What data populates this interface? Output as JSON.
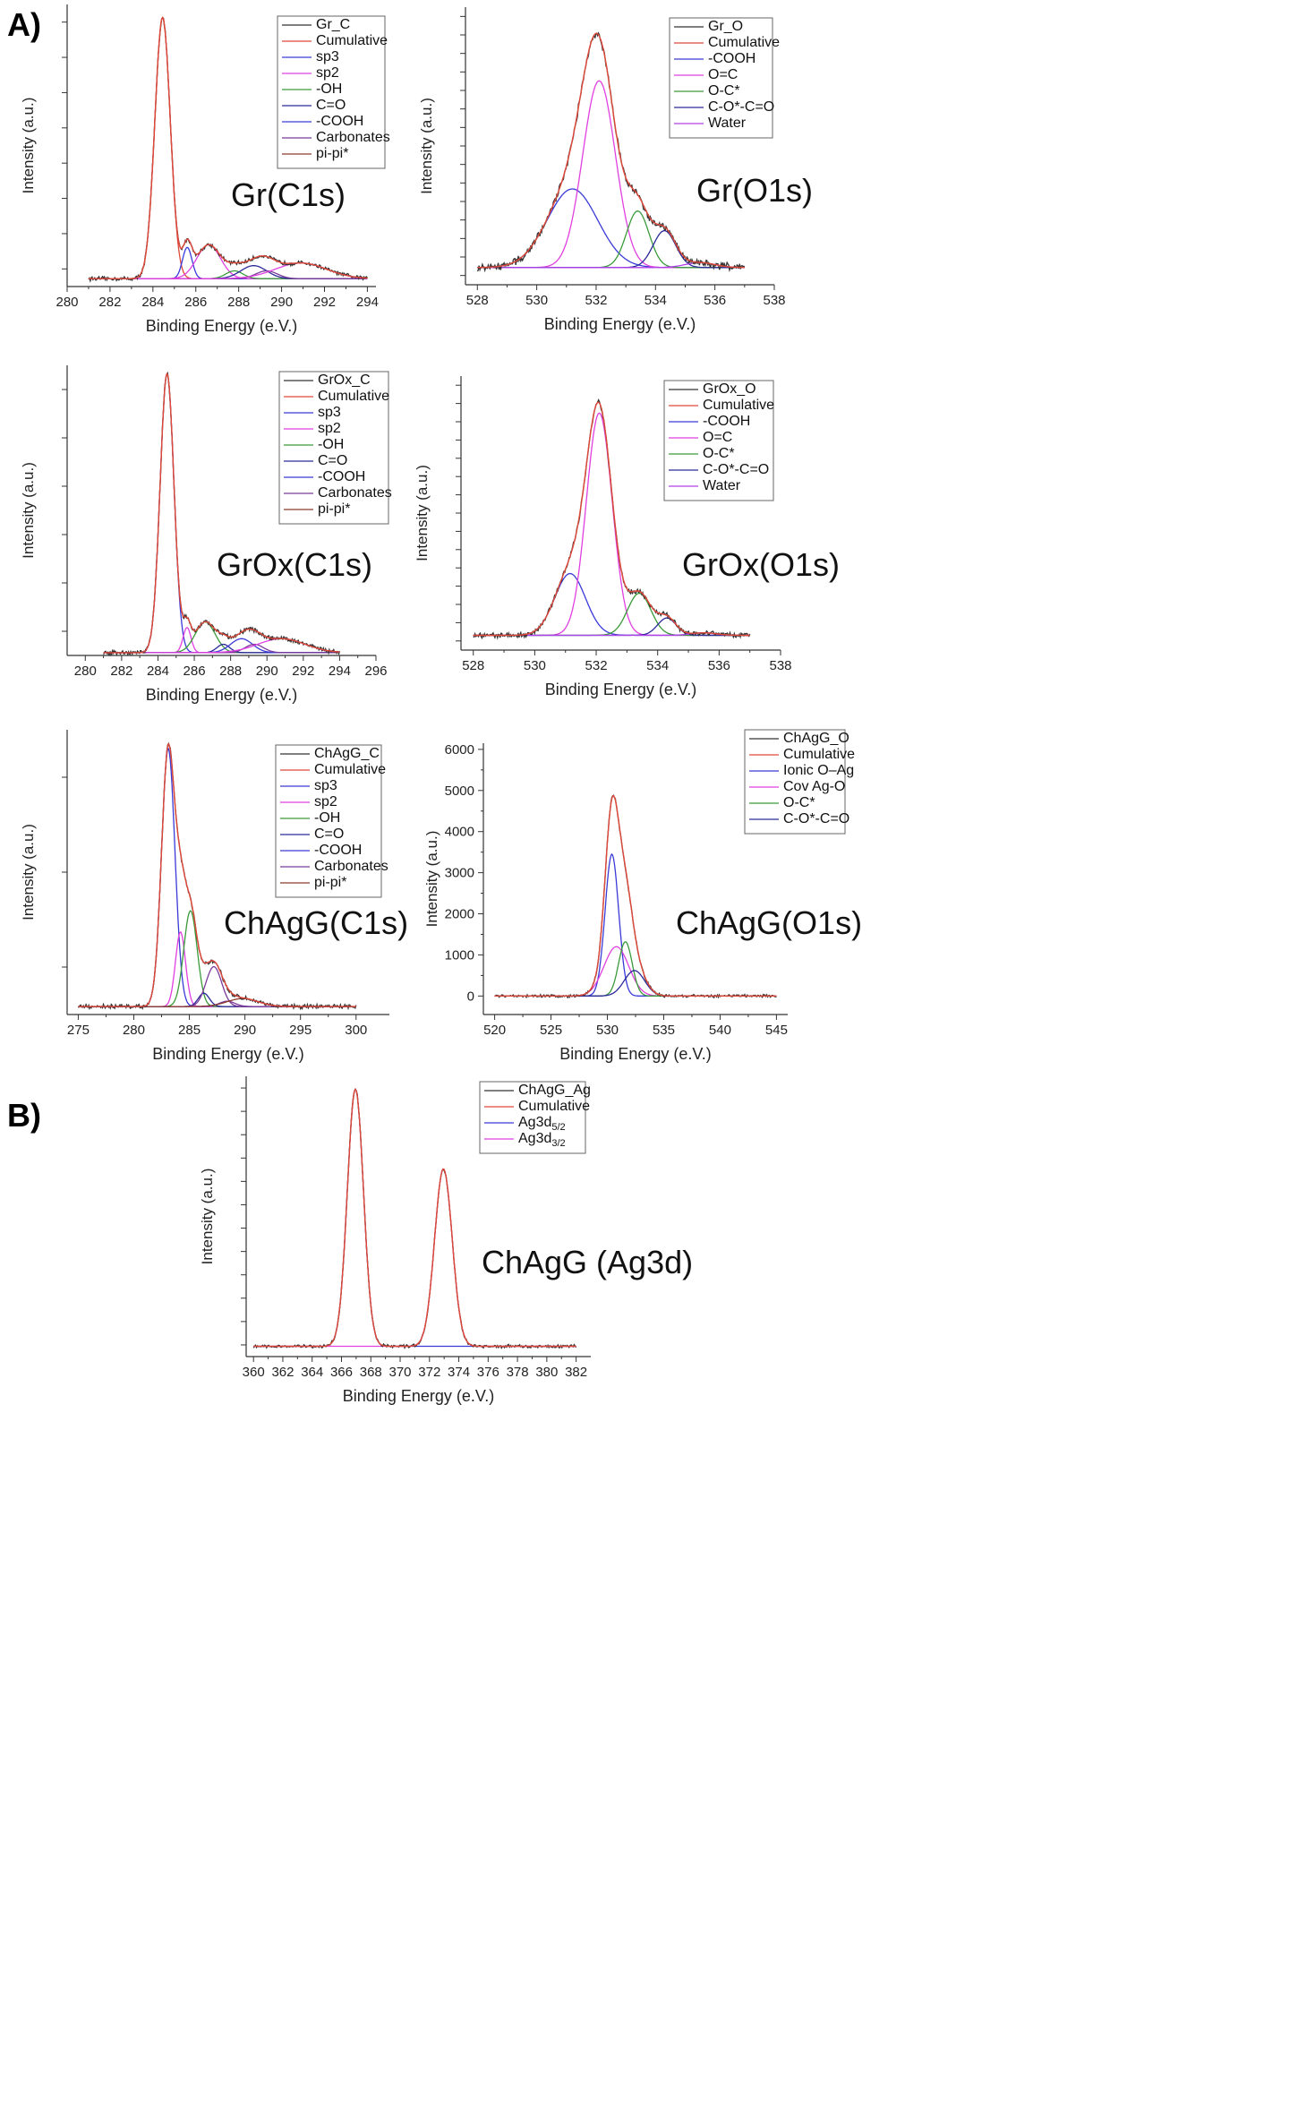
{
  "panel_labels": [
    "A)",
    "B)"
  ],
  "colors": {
    "measured": "#333333",
    "cumulative": "#e0483a",
    "blue": "#3a3ad8",
    "magenta": "#e040e0",
    "green": "#3a9a3a",
    "navy": "#2a2a9a",
    "purple": "#7a3a9a",
    "brown": "#8a3a2a",
    "violet": "#b040e8"
  },
  "chart_data": [
    {
      "type": "line",
      "id": "gr-c1s",
      "title": "Gr(C1s)",
      "xlabel": "Binding Energy (e.V.)",
      "ylabel": "Intensity (a.u.)",
      "xlim": [
        280,
        294.4
      ],
      "ylim": [
        -0.03,
        1.05
      ],
      "xticks": [
        280,
        282,
        284,
        286,
        288,
        290,
        292,
        294
      ],
      "ytick_count": 8,
      "data_range": [
        281,
        294
      ],
      "tick_labels": true,
      "legend": [
        "Gr_C",
        "Cumulative",
        "sp3",
        "sp2",
        "-OH",
        "C=O",
        "-COOH",
        "Carbonates",
        "pi-pi*"
      ],
      "legend_colors": [
        "measured",
        "cumulative",
        "blue",
        "magenta",
        "green",
        "navy",
        "blue",
        "purple",
        "brown"
      ],
      "legend_position": "top-right",
      "noise": 0.006,
      "components": [
        {
          "name": "sp3",
          "center": 284.45,
          "height": 1.0,
          "width": 0.36,
          "color": "cumulative"
        },
        {
          "name": "sp2",
          "center": 285.6,
          "height": 0.12,
          "width": 0.22,
          "color": "blue"
        },
        {
          "name": "-OH",
          "center": 286.6,
          "height": 0.13,
          "width": 0.55,
          "color": "magenta"
        },
        {
          "name": "C=O",
          "center": 287.8,
          "height": 0.03,
          "width": 0.4,
          "color": "green"
        },
        {
          "name": "-COOH",
          "center": 288.7,
          "height": 0.05,
          "width": 0.6,
          "color": "navy"
        },
        {
          "name": "Carbonates",
          "center": 289.3,
          "height": 0.03,
          "width": 0.5,
          "color": "purple"
        },
        {
          "name": "pi-pi*",
          "center": 290.9,
          "height": 0.06,
          "width": 1.2,
          "color": "magenta"
        }
      ]
    },
    {
      "type": "line",
      "id": "gr-o1s",
      "title": "Gr(O1s)",
      "xlabel": "Binding Energy (e.V.)",
      "ylabel": "Intensity (a.u.)",
      "xlim": [
        527.6,
        538
      ],
      "ylim": [
        -0.07,
        1.06
      ],
      "xticks": [
        528,
        530,
        532,
        534,
        536,
        538
      ],
      "ytick_count": 15,
      "data_range": [
        528,
        537
      ],
      "tick_labels": true,
      "legend": [
        "Gr_O",
        "Cumulative",
        "-COOH",
        "O=C",
        "O-C*",
        "C-O*-C=O",
        "Water"
      ],
      "legend_colors": [
        "measured",
        "cumulative",
        "blue",
        "magenta",
        "green",
        "navy",
        "violet"
      ],
      "legend_position": "top-right",
      "noise": 0.012,
      "components": [
        {
          "name": "-COOH",
          "center": 531.2,
          "height": 0.32,
          "width": 0.85,
          "color": "blue"
        },
        {
          "name": "O=C",
          "center": 532.1,
          "height": 0.76,
          "width": 0.55,
          "color": "magenta"
        },
        {
          "name": "O-C*",
          "center": 533.4,
          "height": 0.23,
          "width": 0.38,
          "color": "green"
        },
        {
          "name": "C-O*-C=O",
          "center": 534.3,
          "height": 0.15,
          "width": 0.38,
          "color": "navy"
        },
        {
          "name": "Water",
          "center": 535.5,
          "height": 0.02,
          "width": 0.5,
          "color": "violet"
        }
      ]
    },
    {
      "type": "line",
      "id": "grox-c1s",
      "title": "GrOx(C1s)",
      "xlabel": "Binding Energy (e.V.)",
      "ylabel": "Intensity (a.u.)",
      "xlim": [
        279,
        296
      ],
      "ylim": [
        -0.01,
        1.03
      ],
      "xticks": [
        280,
        282,
        284,
        286,
        288,
        290,
        292,
        294,
        296
      ],
      "ytick_count": 6,
      "data_range": [
        281,
        294
      ],
      "tick_labels": true,
      "legend": [
        "GrOx_C",
        "Cumulative",
        "sp3",
        "sp2",
        "-OH",
        "C=O",
        "-COOH",
        "Carbonates",
        "pi-pi*"
      ],
      "legend_colors": [
        "measured",
        "cumulative",
        "blue",
        "magenta",
        "green",
        "navy",
        "blue",
        "purple",
        "brown"
      ],
      "legend_position": "top-right",
      "noise": 0.006,
      "components": [
        {
          "name": "sp3",
          "center": 284.5,
          "height": 1.0,
          "width": 0.38,
          "color": "blue"
        },
        {
          "name": "sp2",
          "center": 285.6,
          "height": 0.09,
          "width": 0.22,
          "color": "magenta"
        },
        {
          "name": "-OH",
          "center": 286.6,
          "height": 0.11,
          "width": 0.55,
          "color": "green"
        },
        {
          "name": "C=O",
          "center": 287.6,
          "height": 0.03,
          "width": 0.35,
          "color": "navy"
        },
        {
          "name": "-COOH",
          "center": 288.6,
          "height": 0.05,
          "width": 0.6,
          "color": "blue"
        },
        {
          "name": "Carbonates",
          "center": 289.3,
          "height": 0.03,
          "width": 0.5,
          "color": "purple"
        },
        {
          "name": "pi-pi*",
          "center": 290.8,
          "height": 0.05,
          "width": 1.3,
          "color": "magenta"
        }
      ]
    },
    {
      "type": "line",
      "id": "grox-o1s",
      "title": "GrOx(O1s)",
      "xlabel": "Binding Energy (e.V.)",
      "ylabel": "Intensity (a.u.)",
      "xlim": [
        527.6,
        538
      ],
      "ylim": [
        -0.06,
        1.05
      ],
      "xticks": [
        528,
        530,
        532,
        534,
        536,
        538
      ],
      "ytick_count": 15,
      "data_range": [
        528,
        537
      ],
      "tick_labels": true,
      "legend": [
        "GrOx_O",
        "Cumulative",
        "-COOH",
        "O=C",
        "O-C*",
        "C-O*-C=O",
        "Water"
      ],
      "legend_colors": [
        "measured",
        "cumulative",
        "blue",
        "magenta",
        "green",
        "navy",
        "violet"
      ],
      "legend_position": "top-right",
      "noise": 0.008,
      "components": [
        {
          "name": "-COOH",
          "center": 531.15,
          "height": 0.25,
          "width": 0.5,
          "color": "blue"
        },
        {
          "name": "O=C",
          "center": 532.1,
          "height": 0.9,
          "width": 0.42,
          "color": "magenta"
        },
        {
          "name": "O-C*",
          "center": 533.4,
          "height": 0.17,
          "width": 0.38,
          "color": "green"
        },
        {
          "name": "C-O*-C=O",
          "center": 534.3,
          "height": 0.07,
          "width": 0.3,
          "color": "navy"
        },
        {
          "name": "Water",
          "center": 535.5,
          "height": 0.01,
          "width": 0.4,
          "color": "violet"
        }
      ]
    },
    {
      "type": "line",
      "id": "chagg-c1s",
      "title": "ChAgG(C1s)",
      "xlabel": "Binding Energy (e.V.)",
      "ylabel": "Intensity (a.u.)",
      "xlim": [
        274,
        303
      ],
      "ylim": [
        -0.03,
        1.04
      ],
      "xticks": [
        275,
        280,
        285,
        290,
        295,
        300
      ],
      "ytick_count": 3,
      "data_range": [
        275,
        300
      ],
      "tick_labels": true,
      "legend": [
        "ChAgG_C",
        "Cumulative",
        "sp3",
        "sp2",
        "-OH",
        "C=O",
        "-COOH",
        "Carbonates",
        "pi-pi*"
      ],
      "legend_colors": [
        "measured",
        "cumulative",
        "blue",
        "magenta",
        "green",
        "navy",
        "blue",
        "purple",
        "brown"
      ],
      "legend_position": "top-right",
      "noise": 0.006,
      "components": [
        {
          "name": "sp3",
          "center": 283.1,
          "height": 0.97,
          "width": 0.6,
          "color": "blue"
        },
        {
          "name": "sp2",
          "center": 284.2,
          "height": 0.28,
          "width": 0.45,
          "color": "magenta"
        },
        {
          "name": "-OH",
          "center": 285.1,
          "height": 0.36,
          "width": 0.6,
          "color": "green"
        },
        {
          "name": "C=O",
          "center": 286.3,
          "height": 0.05,
          "width": 0.5,
          "color": "navy"
        },
        {
          "name": "-COOH",
          "center": 287.2,
          "height": 0.15,
          "width": 0.7,
          "color": "purple"
        },
        {
          "name": "Carbonates",
          "center": 288.4,
          "height": 0.02,
          "width": 0.7,
          "color": "purple"
        },
        {
          "name": "pi-pi*",
          "center": 289.8,
          "height": 0.03,
          "width": 1.4,
          "color": "brown"
        }
      ]
    },
    {
      "type": "line",
      "id": "chagg-o1s",
      "title": "ChAgG(O1s)",
      "xlabel": "Binding Energy (e.V.)",
      "ylabel": "Intensity (a.u.)",
      "xlim": [
        519,
        546
      ],
      "ylim": [
        -450,
        6150
      ],
      "xticks": [
        520,
        525,
        530,
        535,
        540,
        545
      ],
      "yticks": [
        0,
        1000,
        2000,
        3000,
        4000,
        5000,
        6000
      ],
      "data_range": [
        520,
        545
      ],
      "tick_labels": true,
      "legend": [
        "ChAgG_O",
        "Cumulative",
        "Ionic O–Ag",
        "Cov Ag-O",
        "O-C*",
        "C-O*-C=O"
      ],
      "legend_colors": [
        "measured",
        "cumulative",
        "blue",
        "magenta",
        "green",
        "navy"
      ],
      "legend_position": "top-right",
      "noise": 28,
      "components": [
        {
          "name": "Ionic O–Ag",
          "center": 530.4,
          "height": 3450,
          "width": 0.6,
          "color": "blue"
        },
        {
          "name": "Cov Ag-O",
          "center": 530.8,
          "height": 1200,
          "width": 1.1,
          "color": "magenta"
        },
        {
          "name": "O-C*",
          "center": 531.6,
          "height": 1320,
          "width": 0.6,
          "color": "green"
        },
        {
          "name": "C-O*-C=O",
          "center": 532.4,
          "height": 620,
          "width": 0.9,
          "color": "navy"
        }
      ]
    },
    {
      "type": "line",
      "id": "chagg-ag3d",
      "title": "ChAgG (Ag3d)",
      "xlabel": "Binding Energy (e.V.)",
      "ylabel": "Intensity (a.u.)",
      "xlim": [
        359.5,
        383
      ],
      "ylim": [
        -0.04,
        1.05
      ],
      "xticks": [
        360,
        362,
        364,
        366,
        368,
        370,
        372,
        374,
        376,
        378,
        380,
        382
      ],
      "ytick_count": 12,
      "data_range": [
        360,
        382
      ],
      "tick_labels": true,
      "legend": [
        "ChAgG_Ag",
        "Cumulative",
        "Ag3d5/2",
        "Ag3d3/2"
      ],
      "legend_colors": [
        "measured",
        "cumulative",
        "blue",
        "magenta"
      ],
      "legend_position": "top-right",
      "noise": 0.005,
      "components": [
        {
          "name": "Ag3d5/2",
          "center": 366.95,
          "height": 1.0,
          "width": 0.55,
          "color": "blue"
        },
        {
          "name": "Ag3d3/2",
          "center": 372.95,
          "height": 0.69,
          "width": 0.6,
          "color": "magenta"
        }
      ]
    }
  ]
}
